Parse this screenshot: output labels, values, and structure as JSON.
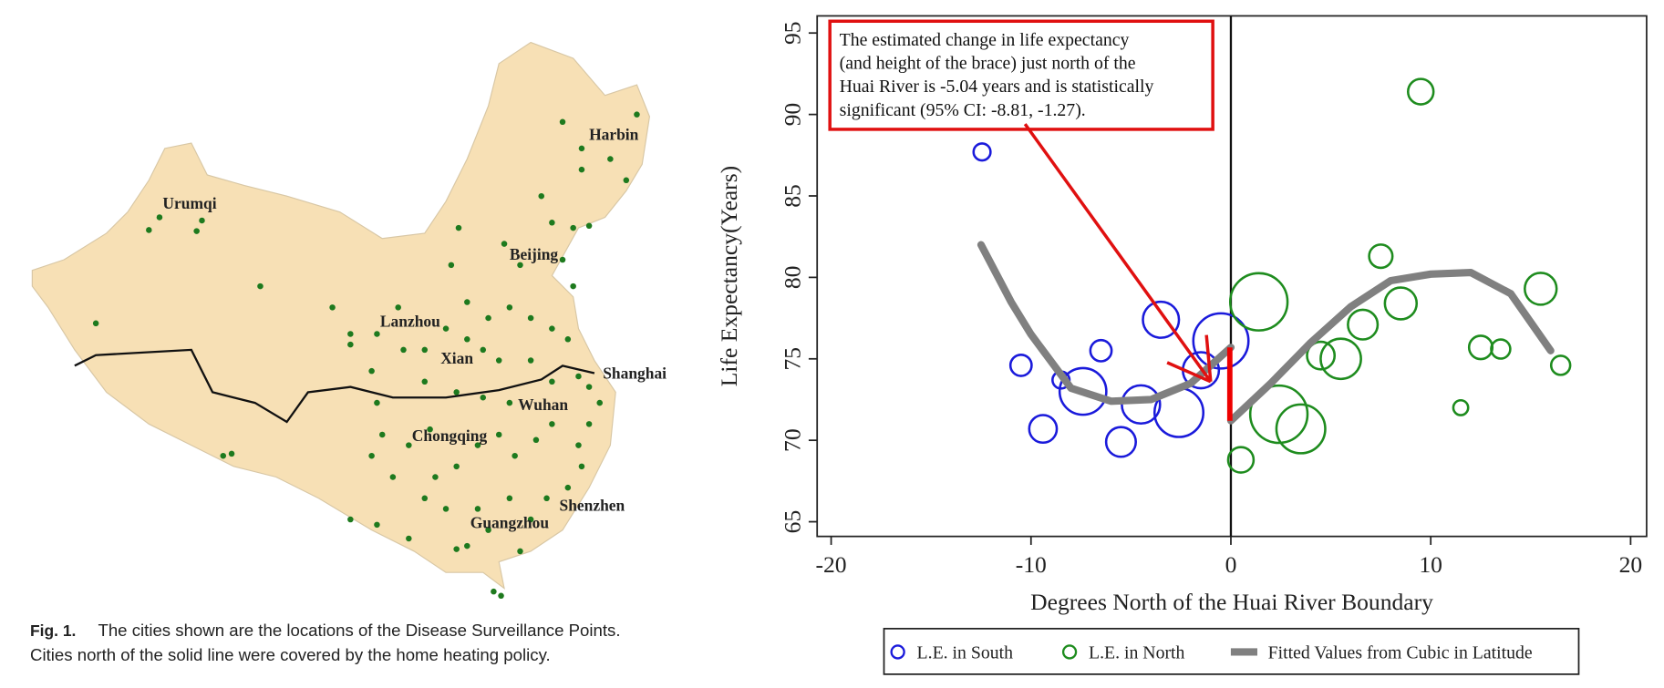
{
  "map": {
    "cities": [
      "Urumqi",
      "Harbin",
      "Beijing",
      "Lanzhou",
      "Xian",
      "Shanghai",
      "Wuhan",
      "Chongqing",
      "Shenzhen",
      "Guangzhou"
    ]
  },
  "caption": {
    "label": "Fig. 1.",
    "lines": [
      "The cities shown are the locations of the Disease Surveillance Points.",
      "Cities north of the solid line were covered by the home heating policy."
    ]
  },
  "chart_data": {
    "type": "scatter",
    "xlabel": "Degrees North of the Huai River Boundary",
    "ylabel": "Life Expectancy(Years)",
    "xlim": [
      -20.7,
      20.8
    ],
    "ylim": [
      64.1,
      96.05
    ],
    "xticks": [
      -20,
      -10,
      0,
      10,
      20
    ],
    "yticks": [
      65,
      70,
      75,
      80,
      85,
      90,
      95
    ],
    "vline": 0,
    "annotation": {
      "lines": [
        "The estimated change in life expectancy",
        "(and height of the brace) just north of the",
        "Huai River is -5.04 years and is statistically",
        "significant (95% CI: -8.81, -1.27)."
      ]
    },
    "series": [
      {
        "name": "L.E. in South",
        "color": "#1a1adb",
        "style": "circle",
        "x": [
          -12.45,
          -10.5,
          -6.5,
          -3.5,
          -8.5,
          -7.4,
          -9.4,
          -5.5,
          -4.5,
          -2.6,
          -1.5,
          -0.5
        ],
        "values": [
          87.7,
          74.6,
          75.5,
          77.4,
          73.7,
          73.0,
          70.7,
          69.9,
          72.2,
          71.7,
          74.3,
          76.1
        ],
        "sizes": [
          8,
          10,
          10,
          17,
          8,
          22,
          13,
          14,
          18,
          23,
          17,
          26
        ]
      },
      {
        "name": "L.E. in North",
        "color": "#1e8c1e",
        "style": "circle",
        "x": [
          9.5,
          1.4,
          7.5,
          8.5,
          6.6,
          4.5,
          5.5,
          2.4,
          3.5,
          0.5,
          11.5,
          12.5,
          13.5,
          15.5,
          16.5
        ],
        "values": [
          91.4,
          78.5,
          81.3,
          78.4,
          77.1,
          75.2,
          75.0,
          71.6,
          70.7,
          68.8,
          72.0,
          75.7,
          75.6,
          79.3,
          74.6
        ],
        "sizes": [
          12,
          27,
          11,
          15,
          14,
          13,
          19,
          27,
          23,
          12,
          7,
          11,
          9,
          15,
          9
        ]
      },
      {
        "name": "Fitted Values from Cubic in Latitude",
        "color": "#808080",
        "style": "line",
        "x": [
          -12.5,
          -11,
          -10,
          -8,
          -6,
          -4,
          -2,
          0,
          null,
          0,
          2,
          4,
          6,
          8,
          10,
          12,
          14,
          16
        ],
        "values": [
          82,
          78.5,
          76.5,
          73.2,
          72.4,
          72.5,
          73.5,
          75.7,
          null,
          71.2,
          73.5,
          76,
          78.2,
          79.8,
          80.2,
          80.3,
          79,
          75.5
        ]
      }
    ]
  }
}
